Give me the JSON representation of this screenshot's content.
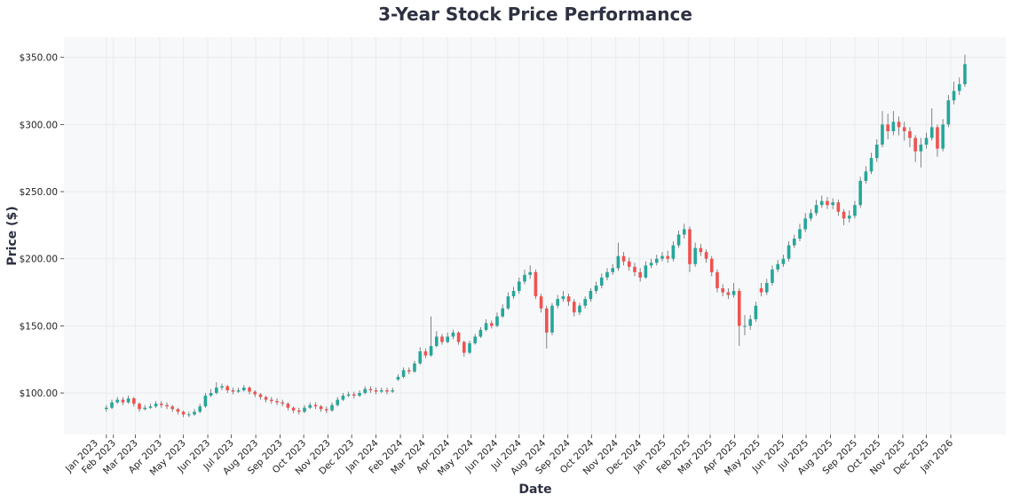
{
  "chart_data": {
    "type": "candlestick",
    "title": "3-Year Stock Price Performance",
    "xlabel": "Date",
    "ylabel": "Price ($)",
    "ylim": [
      69,
      365
    ],
    "xlim": [
      "2022-11-30",
      "2026-03-12"
    ],
    "yticks": [
      100,
      150,
      200,
      250,
      300,
      350
    ],
    "ytick_labels": [
      "$100.00",
      "$150.00",
      "$200.00",
      "$250.00",
      "$300.00",
      "$350.00"
    ],
    "xticks": [
      {
        "date": "2023-01-23",
        "label": "Jan 2023"
      },
      {
        "date": "2023-02-01",
        "label": "Feb 2023"
      },
      {
        "date": "2023-03-01",
        "label": "Mar 2023"
      },
      {
        "date": "2023-04-01",
        "label": "Apr 2023"
      },
      {
        "date": "2023-05-01",
        "label": "May 2023"
      },
      {
        "date": "2023-06-01",
        "label": "Jun 2023"
      },
      {
        "date": "2023-07-01",
        "label": "Jul 2023"
      },
      {
        "date": "2023-08-01",
        "label": "Aug 2023"
      },
      {
        "date": "2023-09-01",
        "label": "Sep 2023"
      },
      {
        "date": "2023-10-01",
        "label": "Oct 2023"
      },
      {
        "date": "2023-11-01",
        "label": "Nov 2023"
      },
      {
        "date": "2023-12-01",
        "label": "Dec 2023"
      },
      {
        "date": "2024-01-01",
        "label": "Jan 2024"
      },
      {
        "date": "2024-02-01",
        "label": "Feb 2024"
      },
      {
        "date": "2024-03-01",
        "label": "Mar 2024"
      },
      {
        "date": "2024-04-01",
        "label": "Apr 2024"
      },
      {
        "date": "2024-05-01",
        "label": "May 2024"
      },
      {
        "date": "2024-06-01",
        "label": "Jun 2024"
      },
      {
        "date": "2024-07-01",
        "label": "Jul 2024"
      },
      {
        "date": "2024-08-01",
        "label": "Aug 2024"
      },
      {
        "date": "2024-09-01",
        "label": "Sep 2024"
      },
      {
        "date": "2024-10-01",
        "label": "Oct 2024"
      },
      {
        "date": "2024-11-01",
        "label": "Nov 2024"
      },
      {
        "date": "2024-12-01",
        "label": "Dec 2024"
      },
      {
        "date": "2025-01-01",
        "label": "Jan 2025"
      },
      {
        "date": "2025-02-01",
        "label": "Feb 2025"
      },
      {
        "date": "2025-03-01",
        "label": "Mar 2025"
      },
      {
        "date": "2025-04-01",
        "label": "Apr 2025"
      },
      {
        "date": "2025-05-01",
        "label": "May 2025"
      },
      {
        "date": "2025-06-01",
        "label": "Jun 2025"
      },
      {
        "date": "2025-07-01",
        "label": "Jul 2025"
      },
      {
        "date": "2025-08-01",
        "label": "Aug 2025"
      },
      {
        "date": "2025-09-01",
        "label": "Sep 2025"
      },
      {
        "date": "2025-10-01",
        "label": "Oct 2025"
      },
      {
        "date": "2025-11-01",
        "label": "Nov 2025"
      },
      {
        "date": "2025-12-01",
        "label": "Dec 2025"
      },
      {
        "date": "2026-01-01",
        "label": "Jan 2026"
      }
    ],
    "grid": true,
    "colors": {
      "up": "#26a69a",
      "down": "#ef5350",
      "plot_bg": "#f7f8fa"
    },
    "fields": [
      "date",
      "open",
      "high",
      "low",
      "close"
    ],
    "ohlc": [
      [
        "2023-01-23",
        88,
        91,
        86,
        89
      ],
      [
        "2023-01-30",
        89,
        95,
        88,
        93
      ],
      [
        "2023-02-06",
        93,
        97,
        92,
        95
      ],
      [
        "2023-02-13",
        95,
        97,
        91,
        93
      ],
      [
        "2023-02-20",
        93,
        98,
        92,
        96
      ],
      [
        "2023-02-27",
        96,
        97,
        90,
        92
      ],
      [
        "2023-03-06",
        92,
        93,
        86,
        88
      ],
      [
        "2023-03-13",
        88,
        91,
        87,
        89
      ],
      [
        "2023-03-20",
        89,
        92,
        88,
        90
      ],
      [
        "2023-03-27",
        90,
        94,
        89,
        92
      ],
      [
        "2023-04-03",
        92,
        94,
        89,
        91
      ],
      [
        "2023-04-10",
        91,
        93,
        88,
        90
      ],
      [
        "2023-04-17",
        90,
        91,
        86,
        88
      ],
      [
        "2023-04-24",
        88,
        89,
        84,
        86
      ],
      [
        "2023-05-01",
        86,
        87,
        82,
        84
      ],
      [
        "2023-05-08",
        84,
        86,
        82,
        84
      ],
      [
        "2023-05-15",
        84,
        88,
        83,
        86
      ],
      [
        "2023-05-22",
        86,
        92,
        85,
        90
      ],
      [
        "2023-05-29",
        90,
        100,
        89,
        98
      ],
      [
        "2023-06-05",
        98,
        103,
        97,
        100
      ],
      [
        "2023-06-12",
        100,
        108,
        99,
        104
      ],
      [
        "2023-06-19",
        104,
        107,
        102,
        105
      ],
      [
        "2023-06-26",
        105,
        106,
        100,
        102
      ],
      [
        "2023-07-03",
        102,
        104,
        99,
        101
      ],
      [
        "2023-07-10",
        101,
        104,
        100,
        102
      ],
      [
        "2023-07-17",
        102,
        106,
        101,
        104
      ],
      [
        "2023-07-24",
        104,
        105,
        99,
        101
      ],
      [
        "2023-07-31",
        101,
        102,
        97,
        99
      ],
      [
        "2023-08-07",
        99,
        100,
        95,
        97
      ],
      [
        "2023-08-14",
        97,
        98,
        93,
        95
      ],
      [
        "2023-08-21",
        95,
        97,
        92,
        94
      ],
      [
        "2023-08-28",
        94,
        96,
        91,
        93
      ],
      [
        "2023-09-04",
        93,
        95,
        90,
        92
      ],
      [
        "2023-09-11",
        92,
        93,
        87,
        89
      ],
      [
        "2023-09-18",
        89,
        90,
        85,
        87
      ],
      [
        "2023-09-25",
        87,
        89,
        84,
        86
      ],
      [
        "2023-10-02",
        86,
        91,
        85,
        89
      ],
      [
        "2023-10-09",
        89,
        93,
        88,
        91
      ],
      [
        "2023-10-16",
        91,
        93,
        88,
        90
      ],
      [
        "2023-10-23",
        90,
        91,
        86,
        88
      ],
      [
        "2023-10-30",
        88,
        90,
        85,
        87
      ],
      [
        "2023-11-06",
        87,
        93,
        86,
        91
      ],
      [
        "2023-11-13",
        91,
        97,
        90,
        95
      ],
      [
        "2023-11-20",
        95,
        100,
        94,
        98
      ],
      [
        "2023-11-27",
        98,
        101,
        97,
        99
      ],
      [
        "2023-12-04",
        99,
        101,
        96,
        98
      ],
      [
        "2023-12-11",
        98,
        102,
        97,
        100
      ],
      [
        "2023-12-18",
        100,
        105,
        99,
        103
      ],
      [
        "2023-12-25",
        103,
        105,
        100,
        102
      ],
      [
        "2024-01-01",
        102,
        104,
        99,
        101
      ],
      [
        "2024-01-08",
        101,
        104,
        100,
        102
      ],
      [
        "2024-01-15",
        102,
        104,
        99,
        101
      ],
      [
        "2024-01-22",
        101,
        104,
        100,
        102
      ],
      [
        "2024-01-29",
        110,
        114,
        109,
        112
      ],
      [
        "2024-02-05",
        112,
        119,
        111,
        117
      ],
      [
        "2024-02-12",
        117,
        119,
        114,
        116
      ],
      [
        "2024-02-19",
        116,
        124,
        115,
        122
      ],
      [
        "2024-02-26",
        122,
        134,
        121,
        131
      ],
      [
        "2024-03-04",
        131,
        133,
        126,
        128
      ],
      [
        "2024-03-11",
        128,
        157,
        127,
        135
      ],
      [
        "2024-03-18",
        135,
        146,
        134,
        142
      ],
      [
        "2024-03-25",
        142,
        144,
        136,
        138
      ],
      [
        "2024-04-01",
        138,
        145,
        137,
        142
      ],
      [
        "2024-04-08",
        142,
        147,
        140,
        145
      ],
      [
        "2024-04-15",
        145,
        146,
        136,
        138
      ],
      [
        "2024-04-22",
        138,
        139,
        127,
        130
      ],
      [
        "2024-04-29",
        130,
        139,
        129,
        137
      ],
      [
        "2024-05-06",
        137,
        144,
        136,
        142
      ],
      [
        "2024-05-13",
        142,
        149,
        141,
        147
      ],
      [
        "2024-05-20",
        147,
        155,
        146,
        152
      ],
      [
        "2024-05-27",
        152,
        154,
        148,
        150
      ],
      [
        "2024-06-03",
        150,
        160,
        149,
        157
      ],
      [
        "2024-06-10",
        157,
        166,
        156,
        163
      ],
      [
        "2024-06-17",
        163,
        175,
        162,
        172
      ],
      [
        "2024-06-24",
        172,
        179,
        170,
        176
      ],
      [
        "2024-07-01",
        176,
        186,
        174,
        183
      ],
      [
        "2024-07-08",
        183,
        192,
        181,
        188
      ],
      [
        "2024-07-15",
        188,
        195,
        185,
        190
      ],
      [
        "2024-07-22",
        190,
        192,
        170,
        172
      ],
      [
        "2024-07-29",
        172,
        174,
        160,
        163
      ],
      [
        "2024-08-05",
        163,
        165,
        133,
        145
      ],
      [
        "2024-08-12",
        145,
        167,
        143,
        165
      ],
      [
        "2024-08-19",
        165,
        173,
        163,
        170
      ],
      [
        "2024-08-26",
        170,
        176,
        168,
        172
      ],
      [
        "2024-09-02",
        172,
        174,
        165,
        168
      ],
      [
        "2024-09-09",
        168,
        170,
        157,
        160
      ],
      [
        "2024-09-16",
        160,
        167,
        158,
        165
      ],
      [
        "2024-09-23",
        165,
        172,
        163,
        170
      ],
      [
        "2024-09-30",
        170,
        178,
        168,
        176
      ],
      [
        "2024-10-07",
        176,
        183,
        174,
        180
      ],
      [
        "2024-10-14",
        180,
        189,
        178,
        186
      ],
      [
        "2024-10-21",
        186,
        193,
        184,
        190
      ],
      [
        "2024-10-28",
        190,
        196,
        188,
        193
      ],
      [
        "2024-11-04",
        193,
        212,
        191,
        202
      ],
      [
        "2024-11-11",
        202,
        205,
        195,
        198
      ],
      [
        "2024-11-18",
        198,
        201,
        191,
        194
      ],
      [
        "2024-11-25",
        194,
        197,
        187,
        190
      ],
      [
        "2024-12-02",
        190,
        193,
        183,
        186
      ],
      [
        "2024-12-09",
        186,
        198,
        185,
        195
      ],
      [
        "2024-12-16",
        195,
        200,
        193,
        197
      ],
      [
        "2024-12-23",
        197,
        203,
        195,
        200
      ],
      [
        "2024-12-30",
        200,
        205,
        198,
        202
      ],
      [
        "2025-01-06",
        202,
        206,
        197,
        200
      ],
      [
        "2025-01-13",
        200,
        213,
        198,
        210
      ],
      [
        "2025-01-20",
        210,
        221,
        208,
        218
      ],
      [
        "2025-01-27",
        218,
        226,
        215,
        222
      ],
      [
        "2025-02-03",
        222,
        224,
        190,
        196
      ],
      [
        "2025-02-10",
        196,
        212,
        194,
        208
      ],
      [
        "2025-02-17",
        208,
        211,
        202,
        205
      ],
      [
        "2025-02-24",
        205,
        207,
        197,
        200
      ],
      [
        "2025-03-03",
        200,
        202,
        187,
        190
      ],
      [
        "2025-03-10",
        190,
        192,
        175,
        178
      ],
      [
        "2025-03-17",
        178,
        181,
        172,
        175
      ],
      [
        "2025-03-24",
        175,
        178,
        170,
        173
      ],
      [
        "2025-03-31",
        173,
        182,
        171,
        176
      ],
      [
        "2025-04-07",
        176,
        178,
        135,
        150
      ],
      [
        "2025-04-14",
        150,
        158,
        143,
        150
      ],
      [
        "2025-04-21",
        150,
        158,
        147,
        155
      ],
      [
        "2025-04-28",
        155,
        168,
        153,
        165
      ],
      [
        "2025-05-05",
        178,
        182,
        172,
        175
      ],
      [
        "2025-05-12",
        175,
        185,
        173,
        182
      ],
      [
        "2025-05-19",
        182,
        195,
        180,
        192
      ],
      [
        "2025-05-26",
        192,
        199,
        190,
        196
      ],
      [
        "2025-06-02",
        196,
        203,
        194,
        200
      ],
      [
        "2025-06-09",
        200,
        213,
        198,
        210
      ],
      [
        "2025-06-16",
        210,
        218,
        208,
        215
      ],
      [
        "2025-06-23",
        215,
        226,
        213,
        222
      ],
      [
        "2025-06-30",
        222,
        234,
        220,
        230
      ],
      [
        "2025-07-07",
        230,
        237,
        228,
        234
      ],
      [
        "2025-07-14",
        234,
        244,
        232,
        240
      ],
      [
        "2025-07-21",
        240,
        247,
        238,
        243
      ],
      [
        "2025-07-28",
        243,
        246,
        237,
        240
      ],
      [
        "2025-08-04",
        240,
        245,
        237,
        242
      ],
      [
        "2025-08-11",
        242,
        244,
        232,
        235
      ],
      [
        "2025-08-18",
        235,
        237,
        225,
        230
      ],
      [
        "2025-08-25",
        230,
        236,
        227,
        232
      ],
      [
        "2025-09-01",
        232,
        243,
        230,
        240
      ],
      [
        "2025-09-08",
        240,
        261,
        238,
        258
      ],
      [
        "2025-09-15",
        258,
        269,
        256,
        265
      ],
      [
        "2025-09-22",
        265,
        279,
        263,
        275
      ],
      [
        "2025-09-29",
        275,
        289,
        272,
        285
      ],
      [
        "2025-10-06",
        285,
        310,
        283,
        300
      ],
      [
        "2025-10-13",
        300,
        308,
        289,
        295
      ],
      [
        "2025-10-20",
        295,
        310,
        292,
        302
      ],
      [
        "2025-10-27",
        302,
        306,
        292,
        298
      ],
      [
        "2025-11-03",
        298,
        302,
        288,
        295
      ],
      [
        "2025-11-10",
        295,
        298,
        283,
        290
      ],
      [
        "2025-11-17",
        290,
        292,
        272,
        280
      ],
      [
        "2025-11-24",
        280,
        290,
        268,
        285
      ],
      [
        "2025-12-01",
        285,
        294,
        282,
        290
      ],
      [
        "2025-12-08",
        290,
        312,
        288,
        298
      ],
      [
        "2025-12-15",
        298,
        300,
        276,
        282
      ],
      [
        "2025-12-22",
        282,
        304,
        280,
        300
      ],
      [
        "2025-12-29",
        300,
        322,
        298,
        318
      ],
      [
        "2026-01-05",
        318,
        332,
        315,
        325
      ],
      [
        "2026-01-12",
        325,
        335,
        322,
        330
      ],
      [
        "2026-01-19",
        330,
        352,
        328,
        345
      ]
    ]
  }
}
